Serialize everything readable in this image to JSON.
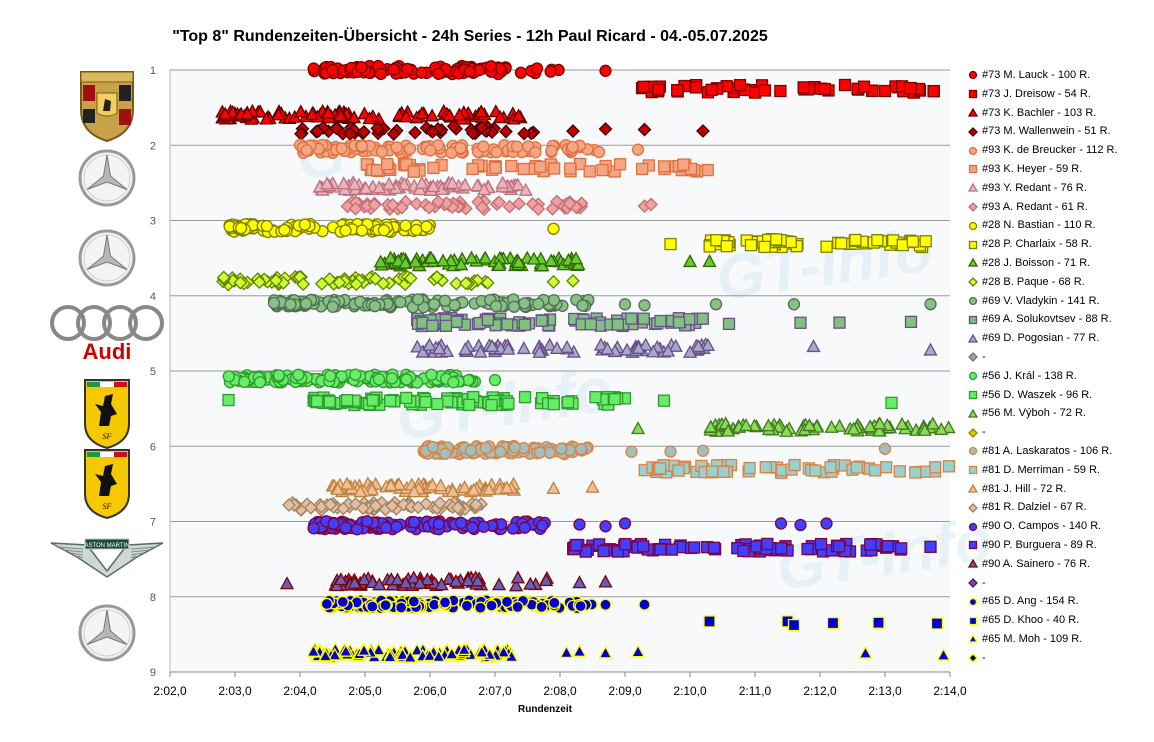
{
  "chart_data": {
    "type": "scatter",
    "title": "\"Top 8\" Rundenzeiten-Übersicht - 24h Series - 12h Paul Ricard - 04.-05.07.2025",
    "xlabel": "Rundenzeit",
    "ylabel": "",
    "x_tick_labels": [
      "2:02,0",
      "2:03,0",
      "2:04,0",
      "2:05,0",
      "2:06,0",
      "2:07,0",
      "2:08,0",
      "2:09,0",
      "2:10,0",
      "2:11,0",
      "2:12,0",
      "2:13,0",
      "2:14,0"
    ],
    "xlim_seconds": [
      122,
      134
    ],
    "y_tick_labels": [
      "1",
      "2",
      "3",
      "4",
      "5",
      "6",
      "7",
      "8",
      "9"
    ],
    "ylim": [
      1,
      9
    ],
    "grid": "horizontal",
    "legend_position": "right",
    "watermark": "GT-Info",
    "series": [
      {
        "name": "#73 M. Lauck - 100 R.",
        "marker": "circle",
        "color": "#ff0000",
        "stroke": "#800000",
        "y": 1.0,
        "n": 100,
        "clusters": [
          [
            124.2,
            128.0
          ]
        ],
        "sparse": [
          128.7
        ]
      },
      {
        "name": "#73 J. Dreisow - 54 R.",
        "marker": "square",
        "color": "#ff0000",
        "stroke": "#800000",
        "y": 1.25,
        "n": 54,
        "clusters": [
          [
            129.2,
            133.8
          ]
        ],
        "sparse": []
      },
      {
        "name": "#73 K. Bachler - 103 R.",
        "marker": "triangle",
        "color": "#ff0000",
        "stroke": "#600000",
        "y": 1.6,
        "n": 103,
        "clusters": [
          [
            122.8,
            127.5
          ]
        ],
        "sparse": []
      },
      {
        "name": "#73 M. Wallenwein - 51 R.",
        "marker": "diamond",
        "color": "#c00000",
        "stroke": "#400000",
        "y": 1.8,
        "n": 51,
        "clusters": [
          [
            124.0,
            127.6
          ]
        ],
        "sparse": [
          128.2,
          128.7,
          129.3,
          130.2
        ]
      },
      {
        "name": "#93 K. de Breucker - 112 R.",
        "marker": "circle",
        "color": "#f4a582",
        "stroke": "#e07040",
        "y": 2.05,
        "n": 112,
        "clusters": [
          [
            124.0,
            128.8
          ]
        ],
        "sparse": [
          129.2
        ]
      },
      {
        "name": "#93 K. Heyer - 59 R.",
        "marker": "square",
        "color": "#f4a582",
        "stroke": "#e07040",
        "y": 2.3,
        "n": 59,
        "clusters": [
          [
            125.0,
            130.3
          ]
        ],
        "sparse": []
      },
      {
        "name": "#93 Y. Redant - 76 R.",
        "marker": "triangle",
        "color": "#e8b4b8",
        "stroke": "#c07080",
        "y": 2.55,
        "n": 76,
        "clusters": [
          [
            124.3,
            127.6
          ]
        ],
        "sparse": []
      },
      {
        "name": "#93 A. Redant - 61 R.",
        "marker": "diamond",
        "color": "#f0a0a0",
        "stroke": "#c07070",
        "y": 2.8,
        "n": 61,
        "clusters": [
          [
            124.7,
            128.5
          ]
        ],
        "sparse": [
          129.3,
          129.4
        ]
      },
      {
        "name": "#28 N. Bastian - 110 R.",
        "marker": "circle",
        "color": "#ffff00",
        "stroke": "#808000",
        "y": 3.1,
        "n": 110,
        "clusters": [
          [
            122.9,
            126.0
          ]
        ],
        "sparse": [
          127.9
        ]
      },
      {
        "name": "#28 P. Charlaix - 58 R.",
        "marker": "square",
        "color": "#ffff00",
        "stroke": "#808000",
        "y": 3.3,
        "n": 58,
        "clusters": [
          [
            130.3,
            134.0
          ]
        ],
        "sparse": [
          129.7
        ]
      },
      {
        "name": "#28 J. Boisson - 71 R.",
        "marker": "triangle",
        "color": "#66cc33",
        "stroke": "#336600",
        "y": 3.55,
        "n": 71,
        "clusters": [
          [
            125.2,
            128.4
          ]
        ],
        "sparse": [
          130.0,
          130.3
        ]
      },
      {
        "name": "#28 B. Paque - 68 R.",
        "marker": "diamond",
        "color": "#ccff33",
        "stroke": "#668000",
        "y": 3.8,
        "n": 68,
        "clusters": [
          [
            122.8,
            127.0
          ]
        ],
        "sparse": [
          127.9,
          128.2
        ]
      },
      {
        "name": "#69 V. Vladykin - 141 R.",
        "marker": "circle",
        "color": "#88c088",
        "stroke": "#507050",
        "y": 4.1,
        "n": 141,
        "clusters": [
          [
            123.6,
            128.5
          ]
        ],
        "sparse": [
          129.0,
          129.3,
          130.4,
          131.6,
          133.7
        ]
      },
      {
        "name": "#69 A. Solukovtsev - 88 R.",
        "marker": "square",
        "color": "#80c080",
        "stroke": "#6a4e8a",
        "y": 4.35,
        "n": 88,
        "clusters": [
          [
            125.8,
            130.2
          ]
        ],
        "sparse": [
          130.6,
          131.7,
          132.3,
          133.4
        ]
      },
      {
        "name": "#69 D. Pogosian - 77 R.",
        "marker": "triangle",
        "color": "#a8a8c8",
        "stroke": "#6a4e8a",
        "y": 4.7,
        "n": 77,
        "clusters": [
          [
            125.8,
            130.3
          ]
        ],
        "sparse": [
          131.9,
          133.7
        ]
      },
      {
        "name": "-",
        "marker": "diamond",
        "color": "#a0a0b0",
        "stroke": "#707080",
        "y": null,
        "n": 0,
        "clusters": [],
        "sparse": []
      },
      {
        "name": "#56 J. Král - 138 R.",
        "marker": "circle",
        "color": "#66ee66",
        "stroke": "#339933",
        "y": 5.1,
        "n": 138,
        "clusters": [
          [
            122.9,
            126.8
          ]
        ],
        "sparse": [
          127.0
        ]
      },
      {
        "name": "#56 D. Waszek - 96 R.",
        "marker": "square",
        "color": "#66ee66",
        "stroke": "#339933",
        "y": 5.4,
        "n": 96,
        "clusters": [
          [
            124.2,
            129.0
          ]
        ],
        "sparse": [
          122.9,
          129.6,
          133.1
        ]
      },
      {
        "name": "#56 M. Výboh - 72 R.",
        "marker": "triangle",
        "color": "#88dd55",
        "stroke": "#447722",
        "y": 5.75,
        "n": 72,
        "clusters": [
          [
            130.3,
            134.0
          ]
        ],
        "sparse": [
          129.2
        ]
      },
      {
        "name": "-",
        "marker": "diamond",
        "color": "#cccc00",
        "stroke": "#888800",
        "y": null,
        "n": 0,
        "clusters": [],
        "sparse": []
      },
      {
        "name": "#81 A. Laskaratos - 106 R.",
        "marker": "circle",
        "color": "#a0c0c0",
        "stroke": "#e08040",
        "y": 6.05,
        "n": 106,
        "clusters": [
          [
            125.9,
            128.5
          ]
        ],
        "sparse": [
          129.1,
          129.7,
          130.2,
          133.0
        ]
      },
      {
        "name": "#81 D. Merriman - 59 R.",
        "marker": "square",
        "color": "#99d0d0",
        "stroke": "#e08040",
        "y": 6.3,
        "n": 59,
        "clusters": [
          [
            129.3,
            134.0
          ]
        ],
        "sparse": []
      },
      {
        "name": "#81 J. Hill - 72 R.",
        "marker": "triangle",
        "color": "#f0c090",
        "stroke": "#c08040",
        "y": 6.55,
        "n": 72,
        "clusters": [
          [
            124.5,
            127.3
          ]
        ],
        "sparse": [
          127.9,
          128.5
        ]
      },
      {
        "name": "#81 R. Dalziel - 67 R.",
        "marker": "diamond",
        "color": "#e0c0a0",
        "stroke": "#a08060",
        "y": 6.8,
        "n": 67,
        "clusters": [
          [
            123.8,
            126.8
          ]
        ],
        "sparse": []
      },
      {
        "name": "#90 O. Campos - 140 R.",
        "marker": "circle",
        "color": "#4040ff",
        "stroke": "#800040",
        "y": 7.05,
        "n": 140,
        "clusters": [
          [
            124.2,
            127.8
          ]
        ],
        "sparse": [
          128.3,
          128.7,
          129.0,
          131.4,
          131.7,
          132.1
        ]
      },
      {
        "name": "#90 P. Burguera - 89 R.",
        "marker": "square",
        "color": "#4040ff",
        "stroke": "#800040",
        "y": 7.35,
        "n": 89,
        "clusters": [
          [
            128.2,
            133.3
          ]
        ],
        "sparse": [
          133.7
        ]
      },
      {
        "name": "#90 A. Sainero - 76 R.",
        "marker": "triangle",
        "color": "#6060c0",
        "stroke": "#800000",
        "y": 7.8,
        "n": 76,
        "clusters": [
          [
            124.5,
            127.8
          ]
        ],
        "sparse": [
          123.8,
          128.3,
          128.7
        ]
      },
      {
        "name": "-",
        "marker": "diamond",
        "color": "#8040c0",
        "stroke": "#402060",
        "y": null,
        "n": 0,
        "clusters": [],
        "sparse": []
      },
      {
        "name": "#65 D. Ang - 154 R.",
        "marker": "circle",
        "color": "#0000cc",
        "stroke": "#ffff00",
        "y": 8.1,
        "n": 154,
        "clusters": [
          [
            124.4,
            128.5
          ]
        ],
        "sparse": [
          128.7,
          129.3
        ]
      },
      {
        "name": "#65 D. Khoo - 40 R.",
        "marker": "square",
        "color": "#0000cc",
        "stroke": "#ffff00",
        "y": 8.35,
        "n": 40,
        "clusters": [],
        "sparse": [
          130.3,
          131.5,
          131.6,
          132.2,
          132.9,
          133.8
        ]
      },
      {
        "name": "#65 M. Moh - 109 R.",
        "marker": "triangle",
        "color": "#0000cc",
        "stroke": "#ffff00",
        "y": 8.75,
        "n": 109,
        "clusters": [
          [
            124.2,
            127.4
          ]
        ],
        "sparse": [
          128.1,
          128.3,
          128.7,
          129.2,
          132.7,
          133.9
        ]
      },
      {
        "name": "-",
        "marker": "diamond",
        "color": "#000000",
        "stroke": "#ffff00",
        "y": null,
        "n": 0,
        "clusters": [],
        "sparse": []
      }
    ]
  },
  "logos": [
    {
      "name": "porsche-logo",
      "brand": "porsche"
    },
    {
      "name": "mercedes-logo-1",
      "brand": "mercedes"
    },
    {
      "name": "mercedes-logo-2",
      "brand": "mercedes"
    },
    {
      "name": "audi-logo",
      "brand": "audi",
      "text": "Audi"
    },
    {
      "name": "ferrari-logo-1",
      "brand": "ferrari"
    },
    {
      "name": "ferrari-logo-2",
      "brand": "ferrari"
    },
    {
      "name": "aston-martin-logo",
      "brand": "aston",
      "text": "ASTON MARTIN"
    },
    {
      "name": "mercedes-logo-3",
      "brand": "mercedes"
    }
  ]
}
